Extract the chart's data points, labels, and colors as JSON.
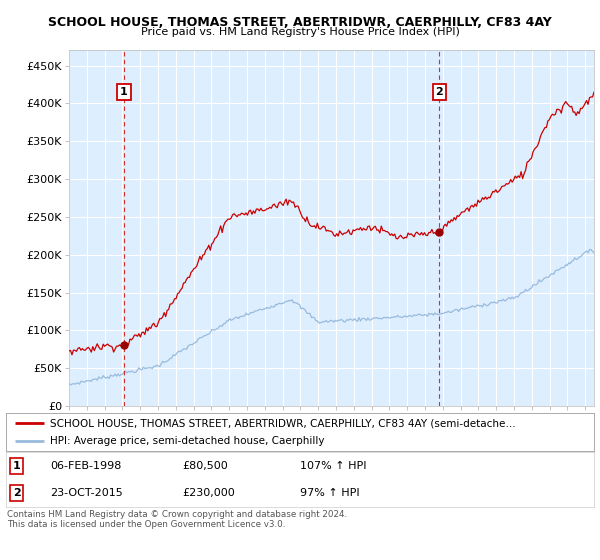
{
  "title1": "SCHOOL HOUSE, THOMAS STREET, ABERTRIDWR, CAERPHILLY, CF83 4AY",
  "title2": "Price paid vs. HM Land Registry's House Price Index (HPI)",
  "ylabel_ticks": [
    "£0",
    "£50K",
    "£100K",
    "£150K",
    "£200K",
    "£250K",
    "£300K",
    "£350K",
    "£400K",
    "£450K"
  ],
  "ylabel_values": [
    0,
    50000,
    100000,
    150000,
    200000,
    250000,
    300000,
    350000,
    400000,
    450000
  ],
  "ylim": [
    0,
    470000
  ],
  "xlim_start": 1995.0,
  "xlim_end": 2024.5,
  "red_line_color": "#cc0000",
  "blue_line_color": "#99bbdd",
  "plot_bg_color": "#ddeeff",
  "grid_color": "#ffffff",
  "marker1_x": 1998.09,
  "marker1_y": 80500,
  "marker1_label": "1",
  "marker2_x": 2015.81,
  "marker2_y": 230000,
  "marker2_label": "2",
  "annotation1_date": "06-FEB-1998",
  "annotation1_price": "£80,500",
  "annotation1_hpi": "107% ↑ HPI",
  "annotation2_date": "23-OCT-2015",
  "annotation2_price": "£230,000",
  "annotation2_hpi": "97% ↑ HPI",
  "legend_line1": "SCHOOL HOUSE, THOMAS STREET, ABERTRIDWR, CAERPHILLY, CF83 4AY (semi-detache…",
  "legend_line2": "HPI: Average price, semi-detached house, Caerphilly",
  "footer": "Contains HM Land Registry data © Crown copyright and database right 2024.\nThis data is licensed under the Open Government Licence v3.0."
}
